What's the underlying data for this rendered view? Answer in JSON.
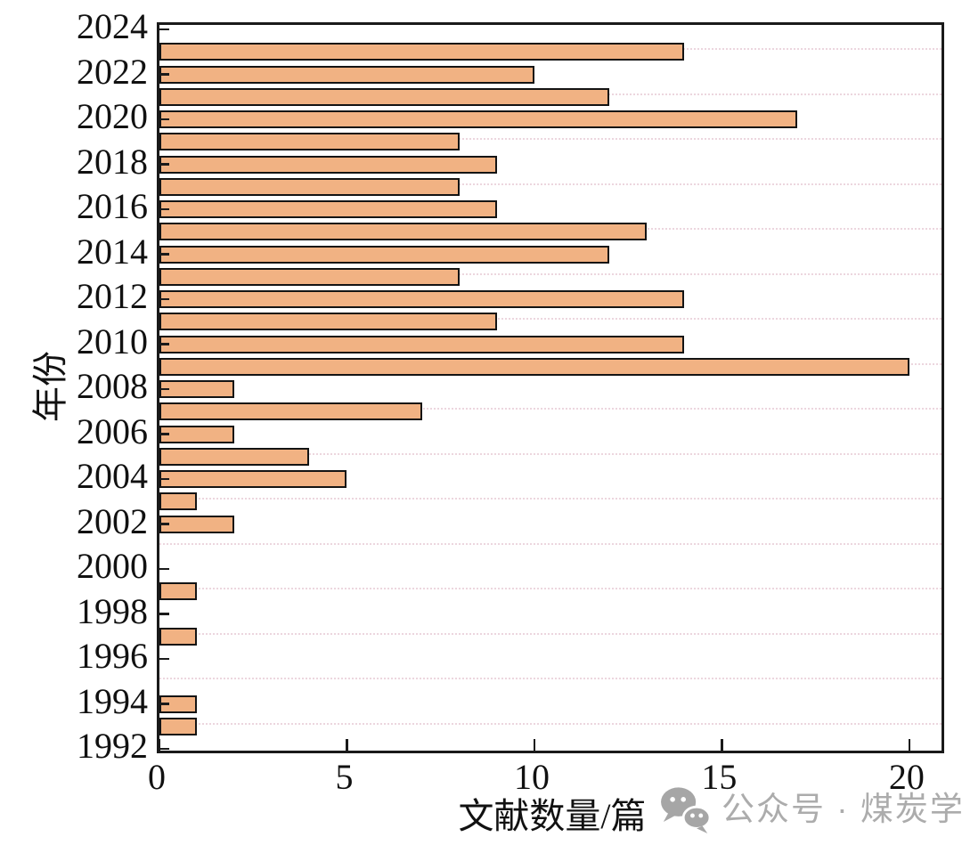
{
  "chart_data": {
    "type": "bar",
    "orientation": "horizontal",
    "title": "",
    "xlabel": "文献数量/篇",
    "ylabel": "年份",
    "xlim": [
      0,
      21
    ],
    "ylim": [
      1992,
      2024
    ],
    "x_tick_values": [
      0,
      5,
      10,
      15,
      20
    ],
    "x_tick_labels": [
      "0",
      "5",
      "10",
      "15",
      "20"
    ],
    "y_tick_values": [
      2024,
      2022,
      2020,
      2018,
      2016,
      2014,
      2012,
      2010,
      2008,
      2006,
      2004,
      2002,
      2000,
      1998,
      1996,
      1994,
      1992
    ],
    "y_tick_labels": [
      "2024",
      "2022",
      "2020",
      "2018",
      "2016",
      "2014",
      "2012",
      "2010",
      "2008",
      "2006",
      "2004",
      "2002",
      "2000",
      "1998",
      "1996",
      "1994",
      "1992"
    ],
    "categories": [
      2023,
      2022,
      2021,
      2020,
      2019,
      2018,
      2017,
      2016,
      2015,
      2014,
      2013,
      2012,
      2011,
      2010,
      2009,
      2008,
      2007,
      2006,
      2005,
      2004,
      2003,
      2002,
      2001,
      2000,
      1999,
      1998,
      1997,
      1996,
      1995,
      1994,
      1993,
      1992
    ],
    "values": [
      14,
      10,
      12,
      17,
      8,
      9,
      8,
      9,
      13,
      12,
      8,
      14,
      9,
      14,
      20,
      2,
      7,
      2,
      4,
      5,
      1,
      2,
      0,
      0,
      1,
      0,
      1,
      0,
      0,
      1,
      1,
      0
    ],
    "bar_color": "#F1B283",
    "bar_border_color": "#141414",
    "axis_color": "#1A1A1A",
    "gridline_color": "#E6C9D3",
    "grid_note": "faint dotted horizontal gridlines at odd years",
    "legend": "none"
  },
  "watermark": {
    "icon": "wechat-icon",
    "text": "公众号 · 煤炭学报",
    "color": "#ACACAC"
  }
}
